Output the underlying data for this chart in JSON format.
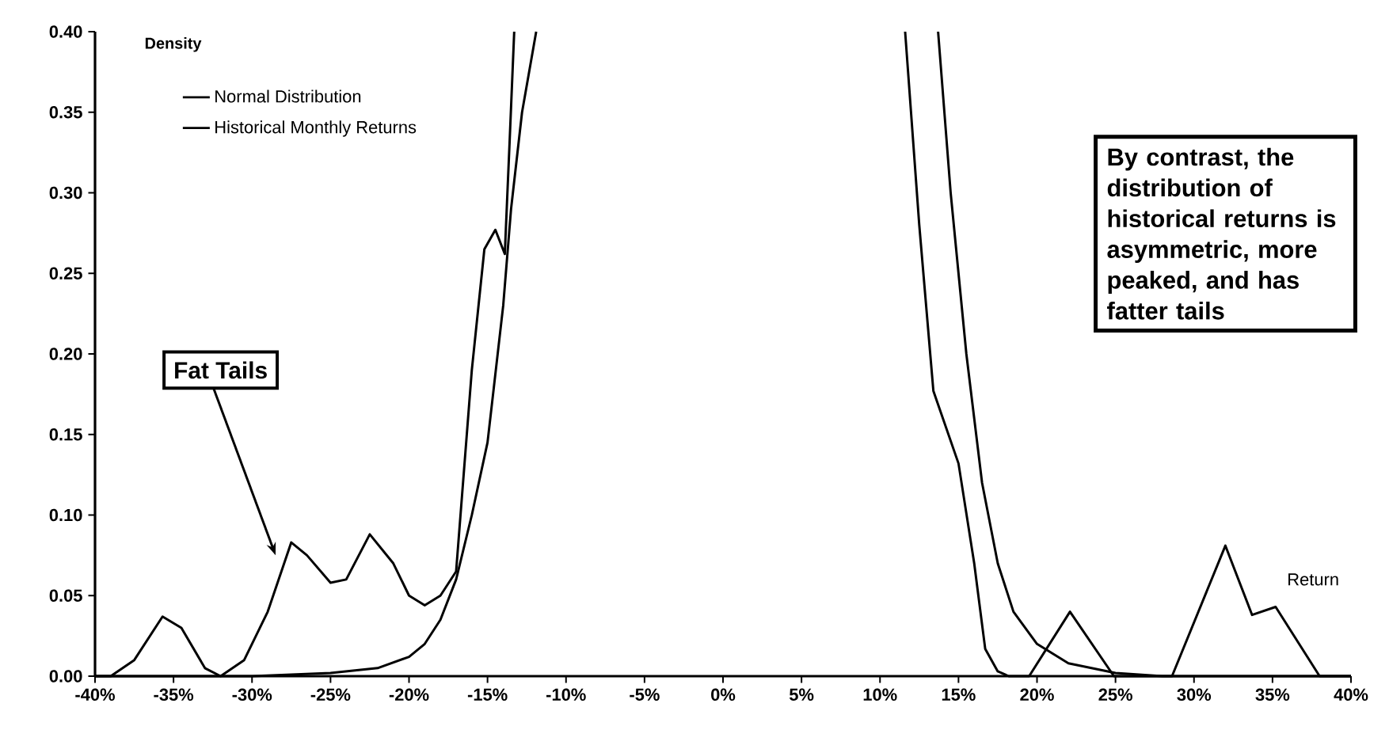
{
  "chart_data": {
    "type": "line",
    "xlabel": "Return",
    "ylabel": "Density",
    "xlim": [
      -40,
      40
    ],
    "ylim": [
      0,
      0.4
    ],
    "xticks": [
      {
        "value": -40,
        "label": "-40%"
      },
      {
        "value": -35,
        "label": "-35%"
      },
      {
        "value": -30,
        "label": "-30%"
      },
      {
        "value": -25,
        "label": "-25%"
      },
      {
        "value": -20,
        "label": "-20%"
      },
      {
        "value": -15,
        "label": "-15%"
      },
      {
        "value": -10,
        "label": "-10%"
      },
      {
        "value": -5,
        "label": "-5%"
      },
      {
        "value": 0,
        "label": "0%"
      },
      {
        "value": 5,
        "label": "5%"
      },
      {
        "value": 10,
        "label": "10%"
      },
      {
        "value": 15,
        "label": "15%"
      },
      {
        "value": 20,
        "label": "20%"
      },
      {
        "value": 25,
        "label": "25%"
      },
      {
        "value": 30,
        "label": "30%"
      },
      {
        "value": 35,
        "label": "35%"
      },
      {
        "value": 40,
        "label": "40%"
      }
    ],
    "yticks": [
      {
        "value": 0,
        "label": "0.00"
      },
      {
        "value": 0.05,
        "label": "0.05"
      },
      {
        "value": 0.1,
        "label": "0.10"
      },
      {
        "value": 0.15,
        "label": "0.15"
      },
      {
        "value": 0.2,
        "label": "0.20"
      },
      {
        "value": 0.25,
        "label": "0.25"
      },
      {
        "value": 0.3,
        "label": "0.30"
      },
      {
        "value": 0.35,
        "label": "0.35"
      },
      {
        "value": 0.4,
        "label": "0.40"
      }
    ],
    "legend": "top left",
    "grid": false,
    "marker": "none",
    "line_style": "solid",
    "series": [
      {
        "name": "Normal Distribution",
        "color": "#000000",
        "x": [
          -40,
          -30,
          -25,
          -22,
          -20,
          -19,
          -18,
          -17,
          -16,
          -15,
          -14,
          -13.5,
          -12.8,
          -11.9,
          0,
          13.7,
          14.5,
          15.5,
          16.5,
          17.5,
          18.5,
          20,
          22,
          25,
          28,
          40
        ],
        "values": [
          0,
          0,
          0.002,
          0.005,
          0.012,
          0.02,
          0.035,
          0.06,
          0.1,
          0.145,
          0.23,
          0.29,
          0.35,
          0.4,
          null,
          0.4,
          0.3,
          0.2,
          0.12,
          0.07,
          0.04,
          0.02,
          0.008,
          0.002,
          0,
          0
        ]
      },
      {
        "name": "Historical Monthly Returns",
        "color": "#000000",
        "x": [
          -40,
          -39,
          -37.5,
          -35.7,
          -34.5,
          -33,
          -32,
          -30.5,
          -29,
          -27.5,
          -26.5,
          -25,
          -24,
          -22.5,
          -21,
          -20,
          -19,
          -18,
          -17,
          -16,
          -15.2,
          -14.5,
          -13.9,
          -13.6,
          -13.3,
          0,
          11.6,
          12.5,
          13.4,
          15,
          16,
          16.7,
          17.5,
          18.2,
          19.5,
          22.1,
          24.9,
          28.6,
          32,
          33.7,
          35.2,
          38,
          40
        ],
        "values": [
          0,
          0,
          0.01,
          0.037,
          0.03,
          0.005,
          0,
          0.01,
          0.04,
          0.083,
          0.075,
          0.058,
          0.06,
          0.088,
          0.07,
          0.05,
          0.044,
          0.05,
          0.065,
          0.19,
          0.265,
          0.277,
          0.262,
          0.33,
          0.4,
          null,
          0.4,
          0.28,
          0.177,
          0.132,
          0.07,
          0.017,
          0.003,
          0,
          0,
          0.04,
          0,
          0,
          0.081,
          0.038,
          0.043,
          0,
          0
        ]
      }
    ],
    "annotations": [
      "Fat Tails",
      "By contrast, the distribution of historical returns is asymmetric, more peaked, and has fatter tails"
    ]
  }
}
